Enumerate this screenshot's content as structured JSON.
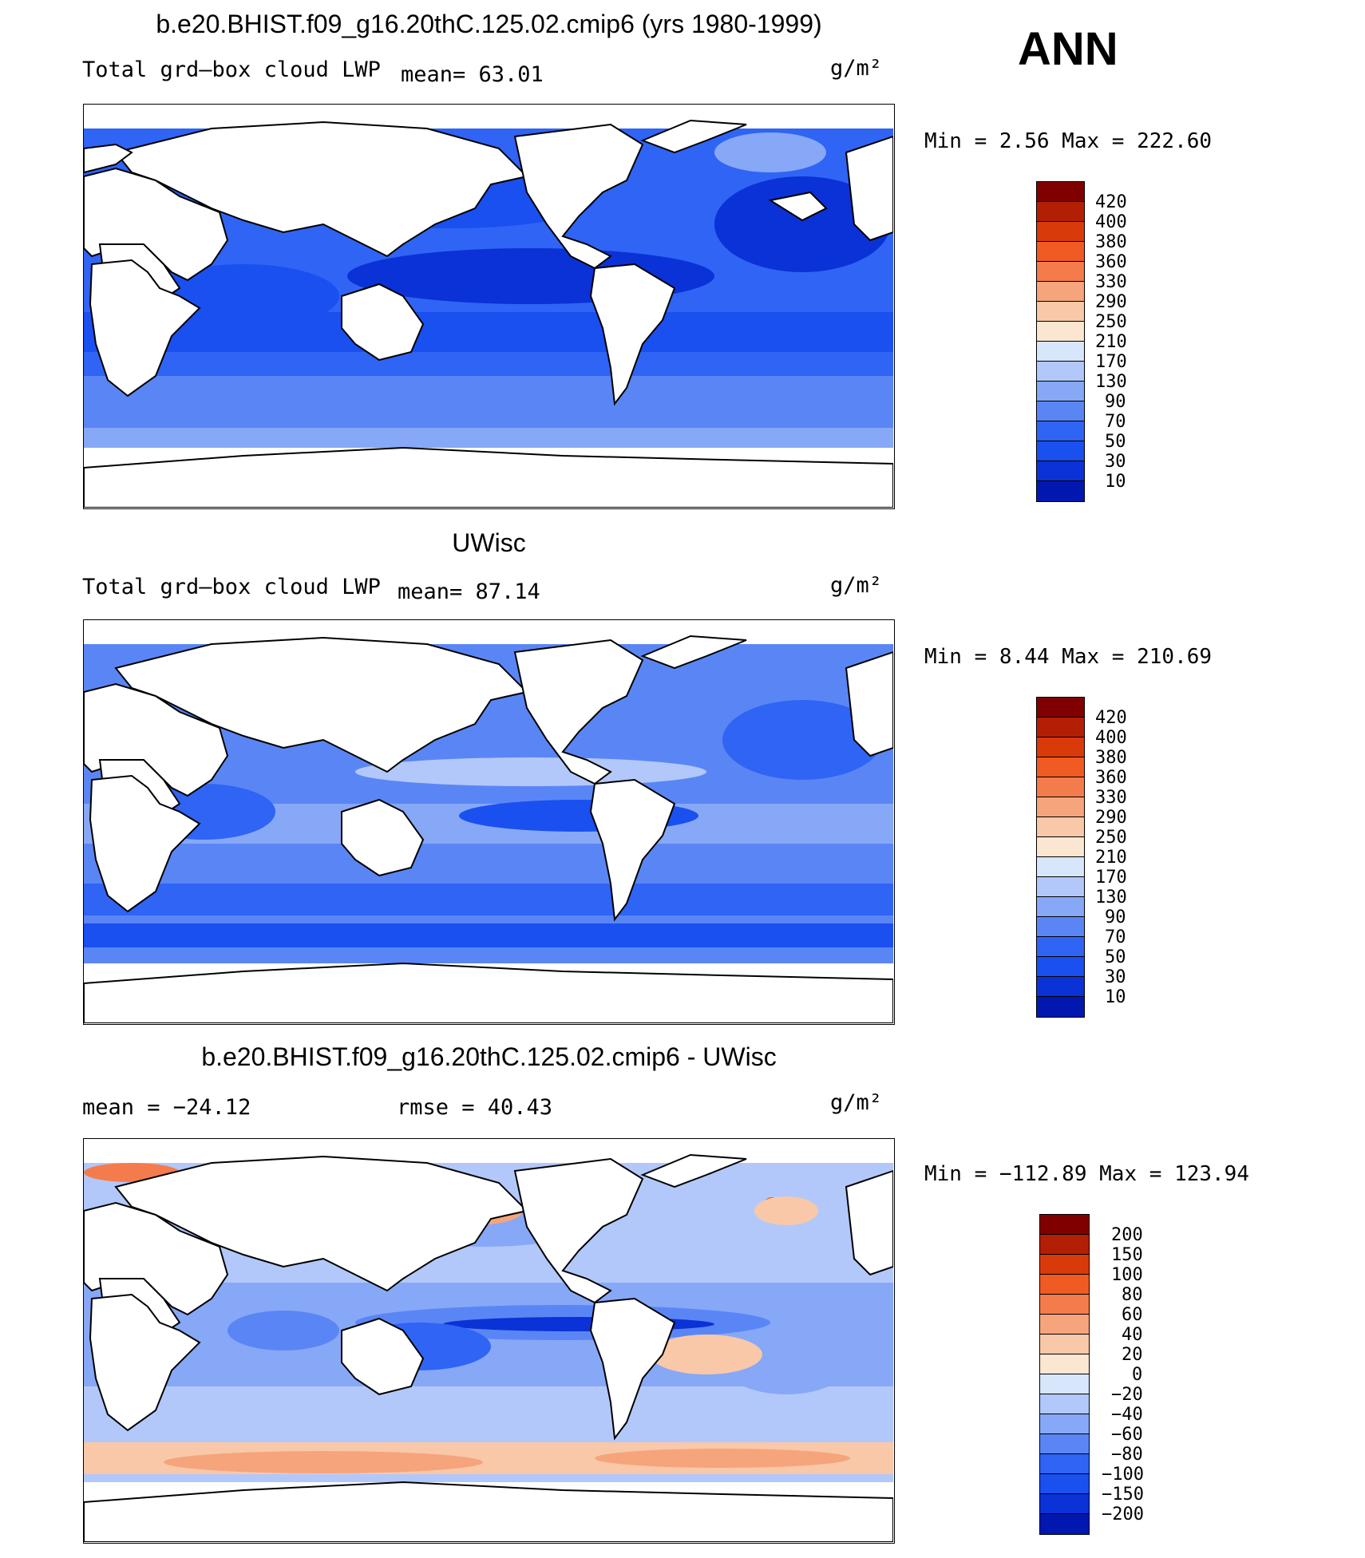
{
  "season": "ANN",
  "colors": {
    "abs_scale": [
      "#000a7a",
      "#0018b0",
      "#0a32d6",
      "#1a4ff0",
      "#2f64f5",
      "#5a86f5",
      "#86a8f7",
      "#b2c8fa",
      "#d7e6fb",
      "#fbe6d2",
      "#f9c8a8",
      "#f6a47c",
      "#f47c4c",
      "#f05a23",
      "#d93a0a",
      "#b31f04",
      "#800000"
    ],
    "diff_scale": [
      "#000a7a",
      "#0018b0",
      "#0a32d6",
      "#1a4ff0",
      "#2f64f5",
      "#5a86f5",
      "#86a8f7",
      "#b2c8fa",
      "#d7e6fb",
      "#fbe6d2",
      "#f9c8a8",
      "#f6a47c",
      "#f47c4c",
      "#f05a23",
      "#d93a0a",
      "#b31f04",
      "#800000"
    ]
  },
  "panels": [
    {
      "title": "b.e20.BHIST.f09_g16.20thC.125.02.cmip6 (yrs 1980-1999)",
      "variable": "Total grd–box cloud LWP",
      "mean_text": "mean=   63.01",
      "units": "g/m²",
      "minmax": "Min =    2.56 Max = 222.60",
      "levels": [
        "420",
        "400",
        "380",
        "360",
        "330",
        "290",
        "250",
        "210",
        "170",
        "130",
        "90",
        "70",
        "50",
        "30",
        "10"
      ]
    },
    {
      "title": "UWisc",
      "variable": "Total grd–box cloud LWP",
      "mean_text": "mean=   87.14",
      "units": "g/m²",
      "minmax": "Min =    8.44 Max = 210.69",
      "levels": [
        "420",
        "400",
        "380",
        "360",
        "330",
        "290",
        "250",
        "210",
        "170",
        "130",
        "90",
        "70",
        "50",
        "30",
        "10"
      ]
    },
    {
      "title": "b.e20.BHIST.f09_g16.20thC.125.02.cmip6 - UWisc",
      "mean_text": "mean = −24.12",
      "rmse_text": "rmse =   40.43",
      "units": "g/m²",
      "minmax": "Min = −112.89 Max = 123.94",
      "levels": [
        "200",
        "150",
        "100",
        "80",
        "60",
        "40",
        "20",
        "0",
        "−20",
        "−40",
        "−60",
        "−80",
        "−100",
        "−150",
        "−200"
      ]
    }
  ]
}
